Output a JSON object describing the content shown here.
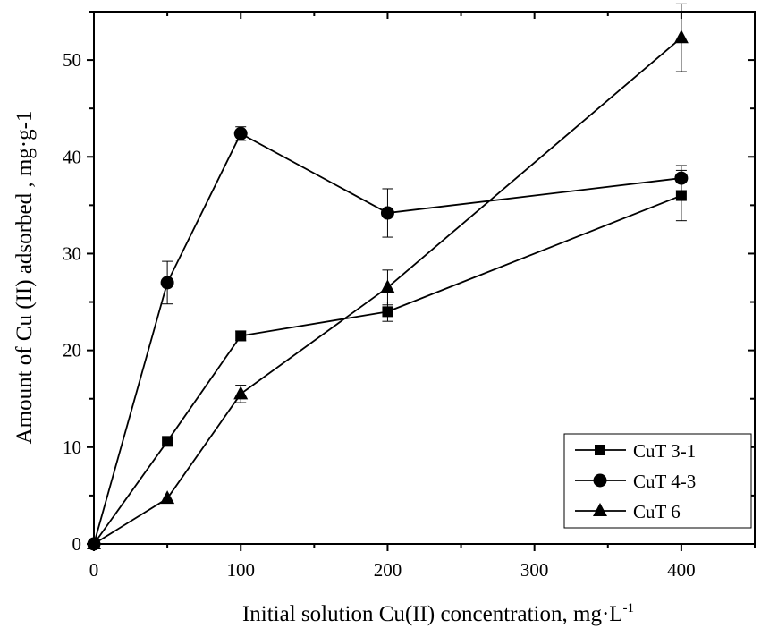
{
  "chart_data": {
    "type": "line",
    "title": "",
    "xlabel": "Initial solution Cu(II)  concentration, mg·L",
    "xlabel_superscript": "-1",
    "ylabel": "Amount of Cu (II) adsorbed , mg·g-1",
    "xlim": [
      0,
      450
    ],
    "ylim": [
      0,
      55
    ],
    "xticks": [
      0,
      100,
      200,
      300,
      400
    ],
    "yticks": [
      0,
      10,
      20,
      30,
      40,
      50
    ],
    "grid": false,
    "legend_position": "bottom-right",
    "x": [
      0,
      50,
      100,
      200,
      400
    ],
    "series": [
      {
        "name": "CuT 3-1",
        "marker": "square",
        "values": [
          0,
          10.6,
          21.5,
          24.0,
          36.0
        ],
        "errors": [
          0,
          0,
          0.5,
          1.0,
          2.6
        ]
      },
      {
        "name": "CuT 4-3",
        "marker": "circle",
        "values": [
          0,
          27.0,
          42.4,
          34.2,
          37.8
        ],
        "errors": [
          0,
          2.2,
          0.7,
          2.5,
          1.3
        ]
      },
      {
        "name": "CuT 6",
        "marker": "triangle",
        "values": [
          0,
          4.7,
          15.5,
          26.5,
          52.3
        ],
        "errors": [
          0,
          0,
          0.9,
          1.8,
          3.5
        ]
      }
    ],
    "line_color": "#000000"
  }
}
